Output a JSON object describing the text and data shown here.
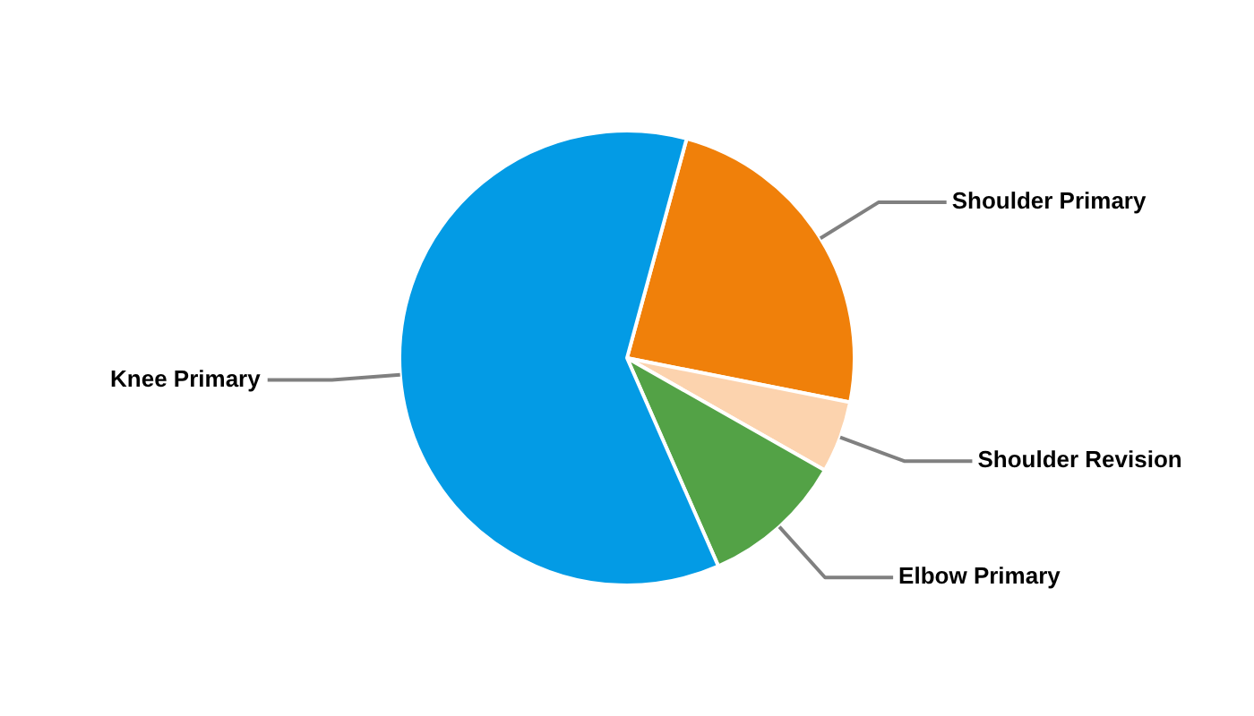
{
  "chart_data": {
    "type": "pie",
    "categories": [
      "Shoulder Primary",
      "Shoulder Revision",
      "Elbow Primary",
      "Knee Primary"
    ],
    "values": [
      23.9,
      5.1,
      10.2,
      60.8
    ],
    "colors": [
      "#f0800a",
      "#fcd3ae",
      "#53a246",
      "#039be5"
    ]
  }
}
